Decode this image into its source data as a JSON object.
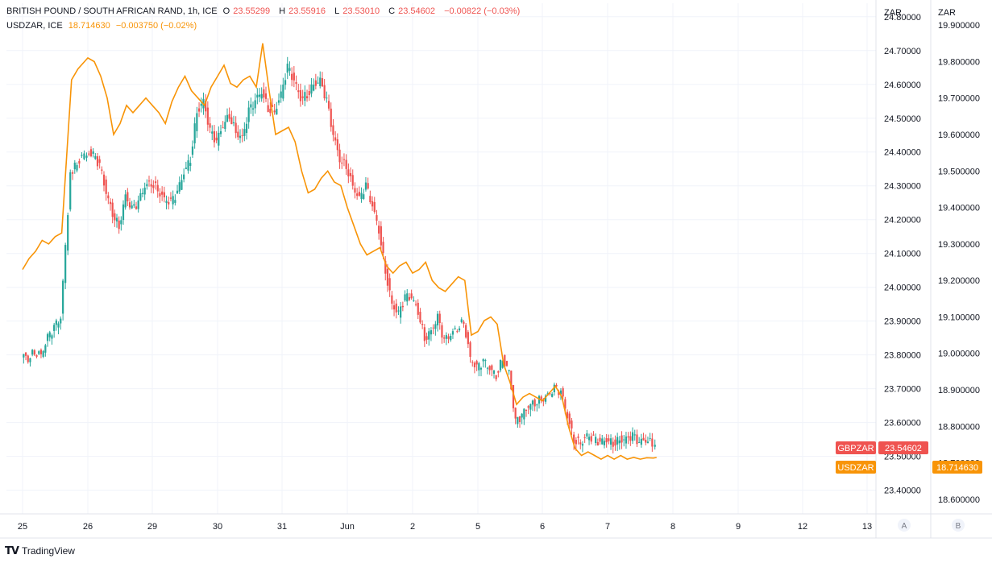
{
  "legend": {
    "main_name": "BRITISH POUND / SOUTH AFRICAN RAND, 1h, ICE",
    "o_label": "O",
    "o_value": "23.55299",
    "h_label": "H",
    "h_value": "23.55916",
    "l_label": "L",
    "l_value": "23.53010",
    "c_label": "C",
    "c_value": "23.54602",
    "change": "−0.00822 (−0.03%)",
    "overlay_name": "USDZAR, ICE",
    "overlay_value": "18.714630",
    "overlay_change": "−0.003750 (−0.02%)"
  },
  "footer": {
    "brand": "TradingView"
  },
  "colors": {
    "up": "#26a69a",
    "down": "#ef5350",
    "overlay": "#f89407",
    "grid": "#f0f3fa",
    "axis": "#e0e3eb"
  },
  "chart_data": {
    "type": "line",
    "left_axis_unit": "ZAR",
    "right_axis_unit": "ZAR",
    "left_axis_ticks": [
      "24.80000",
      "24.70000",
      "24.60000",
      "24.50000",
      "24.40000",
      "24.30000",
      "24.20000",
      "24.10000",
      "24.00000",
      "23.90000",
      "23.80000",
      "23.70000",
      "23.60000",
      "23.50000",
      "23.40000"
    ],
    "right_axis_ticks": [
      "19.900000",
      "19.800000",
      "19.700000",
      "19.600000",
      "19.500000",
      "19.400000",
      "19.300000",
      "19.200000",
      "19.100000",
      "19.000000",
      "18.900000",
      "18.800000",
      "18.700000",
      "18.600000"
    ],
    "x_tick_labels": [
      "25",
      "26",
      "29",
      "30",
      "31",
      "Jun",
      "2",
      "5",
      "6",
      "7",
      "8",
      "9",
      "12",
      "13"
    ],
    "gbp_ylim": [
      23.33,
      24.84
    ],
    "usd_ylim": [
      18.56,
      19.96
    ],
    "scale_buttons": [
      "A",
      "B"
    ],
    "series": [
      {
        "name": "GBPZAR",
        "axis": "left",
        "last_label": "23.54602",
        "x": [
          0,
          0.1,
          0.2,
          0.3,
          0.4,
          0.5,
          0.6,
          0.75,
          0.85,
          1,
          1.1,
          1.2,
          1.3,
          1.4,
          1.5,
          1.6,
          1.7,
          1.8,
          1.9,
          2,
          2.1,
          2.2,
          2.3,
          2.4,
          2.5,
          2.6,
          2.7,
          2.8,
          2.9,
          3,
          3.1,
          3.2,
          3.3,
          3.4,
          3.5,
          3.6,
          3.7,
          3.8,
          3.9,
          4,
          4.1,
          4.2,
          4.3,
          4.4,
          4.5,
          4.6,
          4.7,
          4.8,
          4.9,
          5,
          5.1,
          5.2,
          5.3,
          5.4,
          5.5,
          5.6,
          5.7,
          5.8,
          5.9,
          6,
          6.1,
          6.2,
          6.3,
          6.4,
          6.5,
          6.6,
          6.7,
          6.8,
          6.9,
          7,
          7.1,
          7.2,
          7.3,
          7.4,
          7.5,
          7.6,
          7.7,
          7.8,
          7.9,
          8,
          8.1,
          8.2,
          8.3,
          8.4,
          8.5,
          8.6,
          8.7,
          8.8,
          8.9,
          9,
          9.1,
          9.2,
          9.3,
          9.4,
          9.5,
          9.6,
          9.7,
          9.75
        ],
        "values": [
          23.8,
          23.79,
          23.81,
          23.8,
          23.85,
          23.88,
          23.91,
          24.33,
          24.37,
          24.4,
          24.39,
          24.36,
          24.28,
          24.22,
          24.18,
          24.27,
          24.23,
          24.25,
          24.3,
          24.31,
          24.29,
          24.26,
          24.25,
          24.28,
          24.34,
          24.38,
          24.52,
          24.55,
          24.46,
          24.43,
          24.48,
          24.51,
          24.46,
          24.44,
          24.52,
          24.55,
          24.58,
          24.53,
          24.52,
          24.57,
          24.65,
          24.61,
          24.56,
          24.57,
          24.6,
          24.61,
          24.55,
          24.45,
          24.38,
          24.36,
          24.3,
          24.26,
          24.3,
          24.24,
          24.17,
          24.05,
          23.95,
          23.92,
          23.97,
          23.97,
          23.93,
          23.85,
          23.87,
          23.91,
          23.84,
          23.86,
          23.88,
          23.9,
          23.79,
          23.76,
          23.78,
          23.76,
          23.74,
          23.79,
          23.75,
          23.6,
          23.62,
          23.65,
          23.66,
          23.67,
          23.68,
          23.7,
          23.69,
          23.62,
          23.55,
          23.54,
          23.56,
          23.55,
          23.54,
          23.55,
          23.54,
          23.55,
          23.55,
          23.56,
          23.54,
          23.55,
          23.54,
          23.546
        ]
      },
      {
        "name": "USDZAR",
        "axis": "right",
        "last_label": "18.714630",
        "x": [
          0,
          0.1,
          0.2,
          0.3,
          0.4,
          0.5,
          0.6,
          0.75,
          0.85,
          1,
          1.1,
          1.2,
          1.3,
          1.4,
          1.5,
          1.6,
          1.7,
          1.8,
          1.9,
          2,
          2.1,
          2.2,
          2.3,
          2.4,
          2.5,
          2.6,
          2.7,
          2.8,
          2.9,
          3,
          3.1,
          3.2,
          3.3,
          3.4,
          3.5,
          3.6,
          3.7,
          3.8,
          3.9,
          4,
          4.1,
          4.2,
          4.3,
          4.4,
          4.5,
          4.6,
          4.7,
          4.8,
          4.9,
          5,
          5.1,
          5.2,
          5.3,
          5.4,
          5.5,
          5.6,
          5.7,
          5.8,
          5.9,
          6,
          6.1,
          6.2,
          6.3,
          6.4,
          6.5,
          6.6,
          6.7,
          6.8,
          6.9,
          7,
          7.1,
          7.2,
          7.3,
          7.4,
          7.5,
          7.6,
          7.7,
          7.8,
          7.9,
          8,
          8.1,
          8.2,
          8.3,
          8.4,
          8.5,
          8.6,
          8.7,
          8.8,
          8.9,
          9,
          9.1,
          9.2,
          9.3,
          9.4,
          9.5,
          9.6,
          9.7,
          9.75
        ],
        "values": [
          19.23,
          19.26,
          19.28,
          19.31,
          19.3,
          19.32,
          19.33,
          19.75,
          19.78,
          19.81,
          19.8,
          19.76,
          19.7,
          19.6,
          19.63,
          19.68,
          19.66,
          19.68,
          19.7,
          19.68,
          19.66,
          19.63,
          19.69,
          19.73,
          19.76,
          19.72,
          19.7,
          19.68,
          19.73,
          19.76,
          19.79,
          19.74,
          19.73,
          19.75,
          19.76,
          19.73,
          19.85,
          19.72,
          19.6,
          19.61,
          19.62,
          19.58,
          19.5,
          19.44,
          19.45,
          19.48,
          19.5,
          19.47,
          19.46,
          19.4,
          19.35,
          19.3,
          19.27,
          19.28,
          19.29,
          19.24,
          19.22,
          19.24,
          19.25,
          19.22,
          19.23,
          19.25,
          19.2,
          19.18,
          19.17,
          19.19,
          19.21,
          19.2,
          19.05,
          19.06,
          19.09,
          19.1,
          19.08,
          18.97,
          18.92,
          18.86,
          18.88,
          18.89,
          18.88,
          18.87,
          18.89,
          18.91,
          18.88,
          18.8,
          18.74,
          18.72,
          18.73,
          18.72,
          18.71,
          18.72,
          18.71,
          18.72,
          18.71,
          18.715,
          18.71,
          18.714,
          18.713,
          18.7146
        ]
      }
    ]
  }
}
